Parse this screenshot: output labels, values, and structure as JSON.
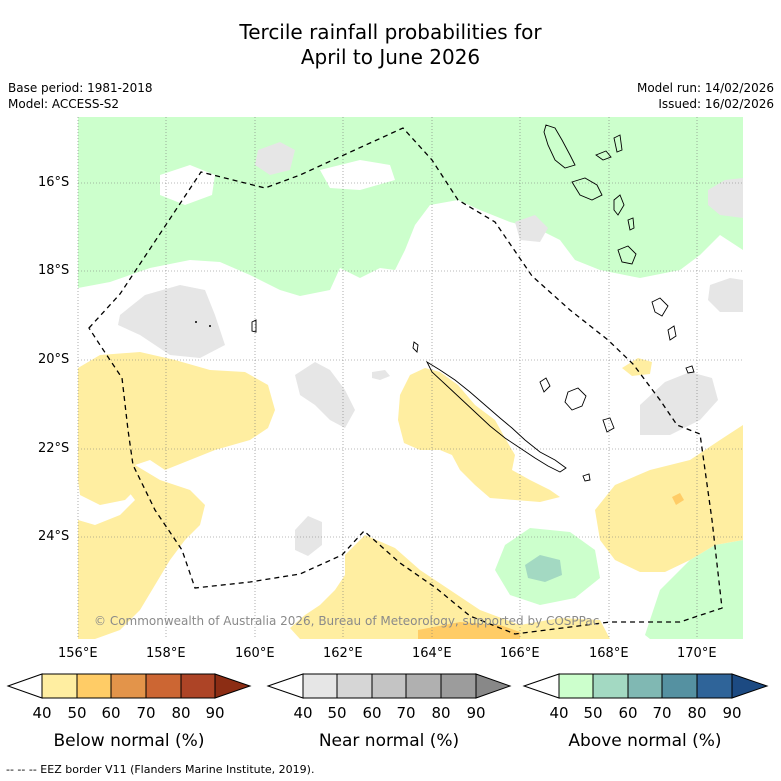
{
  "title_line1": "Tercile rainfall probabilities for",
  "title_line2": "April to June 2026",
  "base_period": "Base period: 1981-2018",
  "model": "Model: ACCESS-S2",
  "model_run": "Model run: 14/02/2026",
  "issued": "Issued: 16/02/2026",
  "credit": "© Commonwealth of Australia 2026, Bureau of Meteorology, supported by COSPPac",
  "footnote": "--  --  -- EEZ border V11 (Flanders Marine Institute, 2019).",
  "map": {
    "lat_labels": [
      "16°S",
      "18°S",
      "20°S",
      "22°S",
      "24°S"
    ],
    "lon_labels": [
      "156°E",
      "158°E",
      "160°E",
      "162°E",
      "164°E",
      "166°E",
      "168°E",
      "170°E"
    ]
  },
  "colorbars": [
    {
      "title": "Below normal (%)",
      "ticks": [
        "40",
        "50",
        "60",
        "70",
        "80",
        "90"
      ],
      "colors": [
        "#ffffff",
        "#ffeea1",
        "#ffcc66",
        "#e3944a",
        "#cc6633",
        "#ad4426",
        "#8c2d14"
      ]
    },
    {
      "title": "Near normal (%)",
      "ticks": [
        "40",
        "50",
        "60",
        "70",
        "80",
        "90"
      ],
      "colors": [
        "#ffffff",
        "#e6e6e6",
        "#d6d6d6",
        "#c4c4c4",
        "#b0b0b0",
        "#9c9c9c",
        "#888888"
      ]
    },
    {
      "title": "Above normal (%)",
      "ticks": [
        "40",
        "50",
        "60",
        "70",
        "80",
        "90"
      ],
      "colors": [
        "#ffffff",
        "#ccffcc",
        "#a3d9c2",
        "#80b8b3",
        "#5591a1",
        "#2f6499",
        "#1c4a82"
      ]
    }
  ]
}
